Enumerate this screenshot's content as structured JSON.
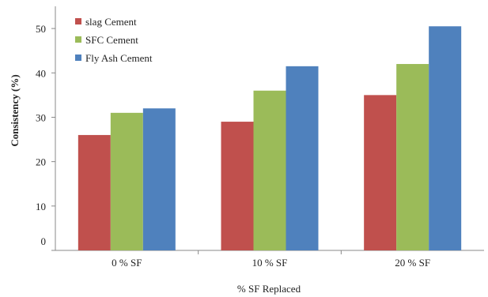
{
  "chart_data": {
    "type": "bar",
    "title": "",
    "xlabel": "% SF Replaced",
    "ylabel": "Consistency (%)",
    "categories": [
      "0 %  SF",
      "10 %  SF",
      "20 % SF"
    ],
    "series": [
      {
        "name": "slag Cement",
        "color": "#c0504d",
        "values": [
          26,
          29,
          35
        ]
      },
      {
        "name": "SFC  Cement",
        "color": "#9bbb59",
        "values": [
          31,
          36,
          42
        ]
      },
      {
        "name": "Fly Ash Cement",
        "color": "#4f81bd",
        "values": [
          32,
          41.5,
          50.5
        ]
      }
    ],
    "ylim": [
      0,
      55
    ],
    "yticks": [
      0,
      10,
      20,
      30,
      40,
      50
    ],
    "legend": "top-left",
    "grid": false
  }
}
